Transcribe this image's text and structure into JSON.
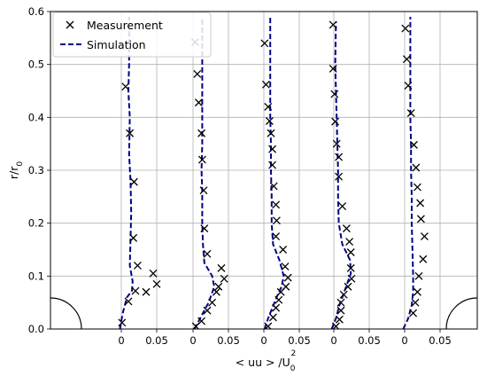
{
  "chart_data": {
    "type": "line",
    "xlabel_parts": [
      "< uu > /U",
      "0",
      "2"
    ],
    "ylabel_parts": [
      "r/r",
      "0"
    ],
    "ylim": [
      0,
      0.6
    ],
    "yticks": [
      "0.0",
      "0.1",
      "0.2",
      "0.3",
      "0.4",
      "0.5",
      "0.6"
    ],
    "xtick_labels": [
      "0",
      "0.05"
    ],
    "grid": true,
    "legend_position": "top-left",
    "colors": {
      "simulation": "#00008b",
      "measurement": "#000000"
    },
    "series_names": [
      "Measurement",
      "Simulation"
    ],
    "profiles": [
      {
        "measurement": [
          [
            0.001,
            0.012
          ],
          [
            0.01,
            0.052
          ],
          [
            0.02,
            0.072
          ],
          [
            0.035,
            0.07
          ],
          [
            0.045,
            0.105
          ],
          [
            0.05,
            0.085
          ],
          [
            0.023,
            0.12
          ],
          [
            0.017,
            0.172
          ],
          [
            0.018,
            0.278
          ],
          [
            0.012,
            0.37
          ],
          [
            0.006,
            0.458
          ]
        ],
        "simulation": [
          [
            -0.002,
            0.0
          ],
          [
            0.002,
            0.03
          ],
          [
            0.008,
            0.06
          ],
          [
            0.015,
            0.072
          ],
          [
            0.016,
            0.09
          ],
          [
            0.012,
            0.12
          ],
          [
            0.013,
            0.17
          ],
          [
            0.014,
            0.22
          ],
          [
            0.013,
            0.28
          ],
          [
            0.011,
            0.33
          ],
          [
            0.012,
            0.4
          ],
          [
            0.01,
            0.45
          ],
          [
            0.011,
            0.5
          ],
          [
            0.011,
            0.59
          ]
        ]
      },
      {
        "measurement": [
          [
            0.004,
            0.005
          ],
          [
            0.012,
            0.015
          ],
          [
            0.02,
            0.035
          ],
          [
            0.027,
            0.05
          ],
          [
            0.033,
            0.07
          ],
          [
            0.044,
            0.095
          ],
          [
            0.04,
            0.115
          ],
          [
            0.036,
            0.08
          ],
          [
            0.02,
            0.142
          ],
          [
            0.016,
            0.19
          ],
          [
            0.015,
            0.262
          ],
          [
            0.013,
            0.32
          ],
          [
            0.012,
            0.37
          ],
          [
            0.008,
            0.428
          ],
          [
            0.006,
            0.482
          ],
          [
            0.003,
            0.542
          ]
        ],
        "simulation": [
          [
            0.002,
            0.0
          ],
          [
            0.01,
            0.02
          ],
          [
            0.022,
            0.05
          ],
          [
            0.03,
            0.08
          ],
          [
            0.027,
            0.1
          ],
          [
            0.016,
            0.125
          ],
          [
            0.014,
            0.16
          ],
          [
            0.013,
            0.2
          ],
          [
            0.013,
            0.26
          ],
          [
            0.012,
            0.3
          ],
          [
            0.013,
            0.35
          ],
          [
            0.013,
            0.4
          ],
          [
            0.013,
            0.45
          ],
          [
            0.013,
            0.5
          ],
          [
            0.013,
            0.59
          ]
        ]
      },
      {
        "measurement": [
          [
            0.006,
            0.005
          ],
          [
            0.013,
            0.022
          ],
          [
            0.017,
            0.04
          ],
          [
            0.021,
            0.055
          ],
          [
            0.024,
            0.07
          ],
          [
            0.031,
            0.08
          ],
          [
            0.034,
            0.097
          ],
          [
            0.03,
            0.118
          ],
          [
            0.027,
            0.15
          ],
          [
            0.017,
            0.175
          ],
          [
            0.018,
            0.205
          ],
          [
            0.017,
            0.235
          ],
          [
            0.014,
            0.27
          ],
          [
            0.012,
            0.31
          ],
          [
            0.012,
            0.34
          ],
          [
            0.01,
            0.37
          ],
          [
            0.008,
            0.393
          ],
          [
            0.006,
            0.42
          ],
          [
            0.003,
            0.462
          ],
          [
            0.001,
            0.54
          ]
        ],
        "simulation": [
          [
            0.001,
            0.0
          ],
          [
            0.006,
            0.02
          ],
          [
            0.012,
            0.04
          ],
          [
            0.018,
            0.06
          ],
          [
            0.025,
            0.08
          ],
          [
            0.028,
            0.1
          ],
          [
            0.022,
            0.13
          ],
          [
            0.013,
            0.16
          ],
          [
            0.011,
            0.2
          ],
          [
            0.011,
            0.25
          ],
          [
            0.01,
            0.3
          ],
          [
            0.01,
            0.35
          ],
          [
            0.009,
            0.4
          ],
          [
            0.009,
            0.45
          ],
          [
            0.009,
            0.5
          ],
          [
            0.009,
            0.59
          ]
        ]
      },
      {
        "measurement": [
          [
            0.003,
            0.005
          ],
          [
            0.008,
            0.018
          ],
          [
            0.01,
            0.035
          ],
          [
            0.01,
            0.05
          ],
          [
            0.014,
            0.065
          ],
          [
            0.02,
            0.08
          ],
          [
            0.025,
            0.095
          ],
          [
            0.024,
            0.115
          ],
          [
            0.024,
            0.145
          ],
          [
            0.022,
            0.165
          ],
          [
            0.018,
            0.19
          ],
          [
            0.012,
            0.232
          ],
          [
            0.007,
            0.288
          ],
          [
            0.007,
            0.325
          ],
          [
            0.004,
            0.35
          ],
          [
            0.002,
            0.392
          ],
          [
            0.001,
            0.444
          ],
          [
            -0.001,
            0.492
          ],
          [
            -0.001,
            0.575
          ]
        ],
        "simulation": [
          [
            -0.003,
            0.0
          ],
          [
            0.003,
            0.02
          ],
          [
            0.008,
            0.045
          ],
          [
            0.016,
            0.075
          ],
          [
            0.024,
            0.105
          ],
          [
            0.023,
            0.13
          ],
          [
            0.012,
            0.16
          ],
          [
            0.007,
            0.2
          ],
          [
            0.006,
            0.25
          ],
          [
            0.006,
            0.3
          ],
          [
            0.005,
            0.35
          ],
          [
            0.004,
            0.4
          ],
          [
            0.003,
            0.45
          ],
          [
            0.002,
            0.5
          ],
          [
            0.003,
            0.58
          ]
        ]
      },
      {
        "measurement": [
          [
            0.012,
            0.03
          ],
          [
            0.015,
            0.05
          ],
          [
            0.018,
            0.07
          ],
          [
            0.02,
            0.1
          ],
          [
            0.026,
            0.132
          ],
          [
            0.028,
            0.175
          ],
          [
            0.023,
            0.208
          ],
          [
            0.022,
            0.238
          ],
          [
            0.018,
            0.268
          ],
          [
            0.016,
            0.305
          ],
          [
            0.013,
            0.348
          ],
          [
            0.009,
            0.408
          ],
          [
            0.005,
            0.46
          ],
          [
            0.003,
            0.51
          ],
          [
            0.001,
            0.568
          ]
        ],
        "simulation": [
          [
            -0.002,
            0.0
          ],
          [
            0.005,
            0.02
          ],
          [
            0.01,
            0.045
          ],
          [
            0.012,
            0.07
          ],
          [
            0.012,
            0.1
          ],
          [
            0.011,
            0.15
          ],
          [
            0.01,
            0.2
          ],
          [
            0.01,
            0.25
          ],
          [
            0.009,
            0.3
          ],
          [
            0.009,
            0.35
          ],
          [
            0.008,
            0.4
          ],
          [
            0.008,
            0.45
          ],
          [
            0.008,
            0.5
          ],
          [
            0.008,
            0.59
          ]
        ]
      }
    ]
  },
  "legend": {
    "measurement_label": "Measurement",
    "simulation_label": "Simulation"
  }
}
